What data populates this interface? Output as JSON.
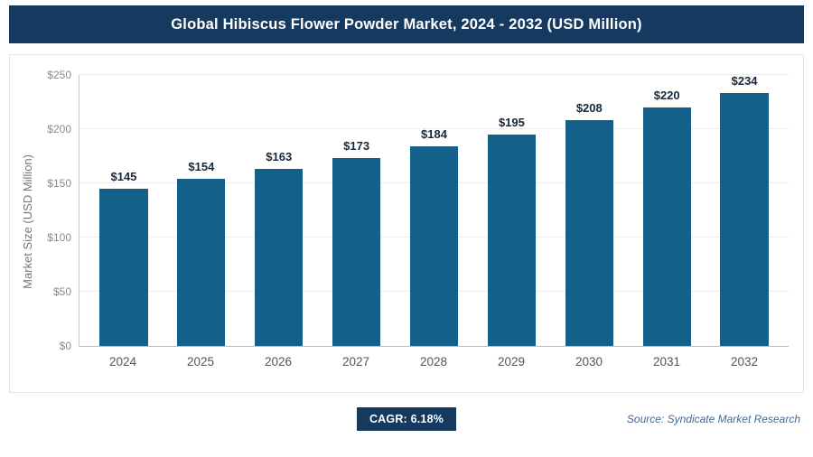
{
  "header": {
    "title": "Global Hibiscus Flower Powder Market, 2024 - 2032 (USD Million)",
    "background": "#16395f"
  },
  "chart_data": {
    "type": "bar",
    "title": "Global Hibiscus Flower Powder Market, 2024 - 2032 (USD Million)",
    "categories": [
      "2024",
      "2025",
      "2026",
      "2027",
      "2028",
      "2029",
      "2030",
      "2031",
      "2032"
    ],
    "values": [
      145,
      154,
      163,
      173,
      184,
      195,
      208,
      220,
      234
    ],
    "value_labels": [
      "$145",
      "$154",
      "$163",
      "$173",
      "$184",
      "$195",
      "$208",
      "$220",
      "$234"
    ],
    "xlabel": "",
    "ylabel": "Market Size (USD Million)",
    "ylim": [
      0,
      250
    ],
    "yticks": [
      0,
      50,
      100,
      150,
      200,
      250
    ],
    "ytick_labels": [
      "$0",
      "$50",
      "$100",
      "$150",
      "$200",
      "$250"
    ],
    "bar_color": "#15608a",
    "grid": true,
    "legend": false
  },
  "footer": {
    "cagr_label": "CAGR: 6.18%",
    "cagr_background": "#16395f",
    "source": "Source: Syndicate Market Research"
  }
}
